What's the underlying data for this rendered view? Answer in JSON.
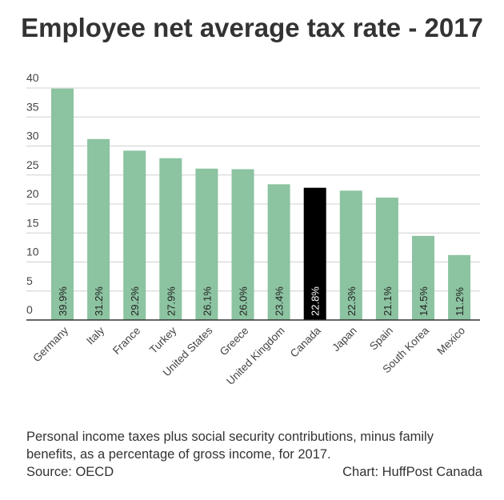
{
  "title": "Employee net average tax rate - 2017",
  "chart_data": {
    "type": "bar",
    "categories": [
      "Germany",
      "Italy",
      "France",
      "Turkey",
      "United States",
      "Greece",
      "United Kingdom",
      "Canada",
      "Japan",
      "Spain",
      "South Korea",
      "Mexico"
    ],
    "values": [
      39.9,
      31.2,
      29.2,
      27.9,
      26.1,
      26.0,
      23.4,
      22.8,
      22.3,
      21.1,
      14.5,
      11.2
    ],
    "data_labels": [
      "39.9%",
      "31.2%",
      "29.2%",
      "27.9%",
      "26.1%",
      "26.0%",
      "23.4%",
      "22.8%",
      "22.3%",
      "21.1%",
      "14.5%",
      "11.2%"
    ],
    "highlight": "Canada",
    "yticks": [
      "0",
      "5",
      "10",
      "15",
      "20",
      "25",
      "30",
      "35",
      "40"
    ],
    "ylim": [
      0,
      40
    ],
    "grid": true,
    "colors": {
      "bar": "#8cc3a1",
      "highlight": "#000000",
      "grid": "#d0d0d0",
      "axis": "#333333"
    }
  },
  "footer": {
    "description": "Personal income taxes plus social security contributions, minus family benefits, as a percentage of gross income, for 2017.",
    "source": "Source: OECD",
    "credit": "Chart: HuffPost Canada"
  }
}
